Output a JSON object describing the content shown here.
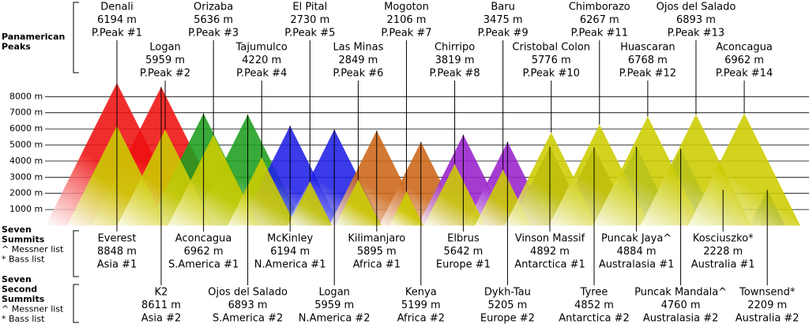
{
  "elevation_axis": {
    "lim": [
      0,
      9000
    ],
    "ticks": [
      {
        "value": 1000,
        "label": "1000 m"
      },
      {
        "value": 2000,
        "label": "2000 m"
      },
      {
        "value": 3000,
        "label": "3000 m"
      },
      {
        "value": 4000,
        "label": "4000 m"
      },
      {
        "value": 5000,
        "label": "5000 m"
      },
      {
        "value": 6000,
        "label": "6000 m"
      },
      {
        "value": 7000,
        "label": "7000 m"
      },
      {
        "value": 8000,
        "label": "8000 m"
      }
    ]
  },
  "panamerican": {
    "title": [
      "Panamerican",
      "Peaks"
    ],
    "color": "#cccc00",
    "peaks": [
      {
        "name": "Denali",
        "elevation": 6194,
        "elevation_label": "6194 m",
        "rank": "P.Peak #1"
      },
      {
        "name": "Logan",
        "elevation": 5959,
        "elevation_label": "5959 m",
        "rank": "P.Peak #2"
      },
      {
        "name": "Orizaba",
        "elevation": 5636,
        "elevation_label": "5636 m",
        "rank": "P.Peak #3"
      },
      {
        "name": "Tajumulco",
        "elevation": 4220,
        "elevation_label": "4220 m",
        "rank": "P.Peak #4"
      },
      {
        "name": "El Pital",
        "elevation": 2730,
        "elevation_label": "2730 m",
        "rank": "P.Peak #5"
      },
      {
        "name": "Las Minas",
        "elevation": 2849,
        "elevation_label": "2849 m",
        "rank": "P.Peak #6"
      },
      {
        "name": "Mogoton",
        "elevation": 2106,
        "elevation_label": "2106 m",
        "rank": "P.Peak #7"
      },
      {
        "name": "Chirripo",
        "elevation": 3819,
        "elevation_label": "3819 m",
        "rank": "P.Peak #8"
      },
      {
        "name": "Baru",
        "elevation": 3475,
        "elevation_label": "3475 m",
        "rank": "P.Peak #9"
      },
      {
        "name": "Cristobal Colon",
        "elevation": 5776,
        "elevation_label": "5776 m",
        "rank": "P.Peak #10"
      },
      {
        "name": "Chimborazo",
        "elevation": 6267,
        "elevation_label": "6267 m",
        "rank": "P.Peak #11"
      },
      {
        "name": "Huascaran",
        "elevation": 6768,
        "elevation_label": "6768 m",
        "rank": "P.Peak #12"
      },
      {
        "name": "Ojos del Salado",
        "elevation": 6893,
        "elevation_label": "6893 m",
        "rank": "P.Peak #13"
      },
      {
        "name": "Aconcagua",
        "elevation": 6962,
        "elevation_label": "6962 m",
        "rank": "P.Peak #14"
      }
    ]
  },
  "seven_summits": {
    "title": [
      "Seven",
      "Summits"
    ],
    "notes": [
      "^ Messner list",
      "* Bass list"
    ]
  },
  "seven_second_summits": {
    "title": [
      "Seven",
      "Second",
      "Summits"
    ],
    "notes": [
      "^ Messner list",
      "* Bass list"
    ]
  },
  "summits": [
    {
      "name": "Everest",
      "elevation": 8848,
      "elevation_label": "8848 m",
      "rank": "Asia #1",
      "color": "#ee1111"
    },
    {
      "name": "K2",
      "elevation": 8611,
      "elevation_label": "8611 m",
      "rank": "Asia #2",
      "color": "#ee1111"
    },
    {
      "name": "Aconcagua",
      "elevation": 6962,
      "elevation_label": "6962 m",
      "rank": "S.America #1",
      "color": "#1e9e1e"
    },
    {
      "name": "Ojos del Salado",
      "elevation": 6893,
      "elevation_label": "6893 m",
      "rank": "S.America #2",
      "color": "#1e9e1e"
    },
    {
      "name": "McKinley",
      "elevation": 6194,
      "elevation_label": "6194 m",
      "rank": "N.America #1",
      "color": "#2020e6"
    },
    {
      "name": "Logan",
      "elevation": 5959,
      "elevation_label": "5959 m",
      "rank": "N.America #2",
      "color": "#2020e6"
    },
    {
      "name": "Kilimanjaro",
      "elevation": 5895,
      "elevation_label": "5895 m",
      "rank": "Africa #1",
      "color": "#cc6618"
    },
    {
      "name": "Kenya",
      "elevation": 5199,
      "elevation_label": "5199 m",
      "rank": "Africa #2",
      "color": "#cc6618"
    },
    {
      "name": "Elbrus",
      "elevation": 5642,
      "elevation_label": "5642 m",
      "rank": "Europe #1",
      "color": "#9922cc"
    },
    {
      "name": "Dykh-Tau",
      "elevation": 5205,
      "elevation_label": "5205 m",
      "rank": "Europe #2",
      "color": "#9922cc"
    },
    {
      "name": "Vinson Massif",
      "elevation": 4892,
      "elevation_label": "4892 m",
      "rank": "Antarctica #1",
      "color": "#5a5a5a"
    },
    {
      "name": "Tyree",
      "elevation": 4852,
      "elevation_label": "4852 m",
      "rank": "Antarctica #2",
      "color": "#5a5a5a"
    },
    {
      "name": "Puncak Jaya^",
      "elevation": 4884,
      "elevation_label": "4884 m",
      "rank": "Australasia #1",
      "color": "#2f7ad8"
    },
    {
      "name": "Puncak Mandala^",
      "elevation": 4760,
      "elevation_label": "4760 m",
      "rank": "Australasia #2",
      "color": "#2f7ad8"
    },
    {
      "name": "Kosciuszko*",
      "elevation": 2228,
      "elevation_label": "2228 m",
      "rank": "Australia #1",
      "color": "#1a5cc4"
    },
    {
      "name": "Townsend*",
      "elevation": 2209,
      "elevation_label": "2209 m",
      "rank": "Australia #2",
      "color": "#1a5cc4"
    }
  ]
}
